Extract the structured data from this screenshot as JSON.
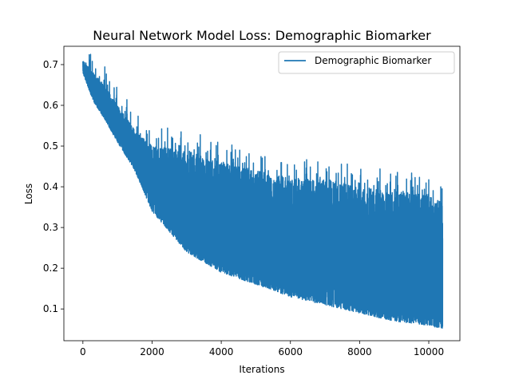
{
  "chart_data": {
    "type": "line",
    "title": "Neural Network Model Loss: Demographic Biomarker",
    "xlabel": "Iterations",
    "ylabel": "Loss",
    "xlim": [
      -550,
      10900
    ],
    "ylim": [
      0.022,
      0.745
    ],
    "xticks": [
      0,
      2000,
      4000,
      6000,
      8000,
      10000
    ],
    "yticks": [
      0.1,
      0.2,
      0.3,
      0.4,
      0.5,
      0.6,
      0.7
    ],
    "ytick_labels": [
      "0.1",
      "0.2",
      "0.3",
      "0.4",
      "0.5",
      "0.6",
      "0.7"
    ],
    "legend": {
      "position": "upper right",
      "entries": [
        "Demographic Biomarker"
      ]
    },
    "grid": false,
    "series": [
      {
        "name": "Demographic Biomarker",
        "color": "#1f77b4",
        "noisy": true,
        "n_points": 10400,
        "envelope": {
          "x": [
            0,
            300,
            600,
            1000,
            1500,
            2000,
            3000,
            4000,
            5000,
            6000,
            7000,
            8000,
            9000,
            10000,
            10400
          ],
          "lower": [
            0.68,
            0.61,
            0.57,
            0.51,
            0.44,
            0.34,
            0.24,
            0.19,
            0.16,
            0.13,
            0.11,
            0.09,
            0.07,
            0.06,
            0.05
          ],
          "upper": [
            0.71,
            0.68,
            0.65,
            0.6,
            0.54,
            0.5,
            0.49,
            0.46,
            0.44,
            0.42,
            0.42,
            0.4,
            0.39,
            0.38,
            0.36
          ]
        }
      }
    ]
  }
}
